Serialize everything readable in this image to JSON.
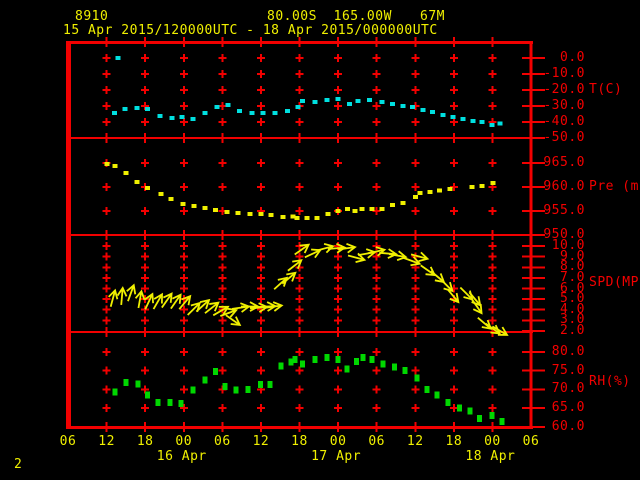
{
  "header": {
    "station_id": "8910",
    "coordinates": "80.00S  165.00W",
    "elevation": "67M",
    "time_range": "15 Apr 2015/120000UTC - 18 Apr 2015/000000UTC"
  },
  "footer": {
    "page_indicator": "2"
  },
  "colors": {
    "background": "#000000",
    "grid_red": "#f20000",
    "label_red": "#f40000",
    "yellow": "#f0f000",
    "temp_cyan": "#00e0e0",
    "rh_green": "#00d800"
  },
  "x_axis": {
    "hours_span": 72,
    "hour_labels": [
      "06",
      "12",
      "18",
      "00",
      "06",
      "12",
      "18",
      "00",
      "06",
      "12",
      "18",
      "00",
      "06"
    ],
    "date_labels": [
      {
        "text": "16 Apr",
        "tick_index": 3
      },
      {
        "text": "17 Apr",
        "tick_index": 7
      },
      {
        "text": "18 Apr",
        "tick_index": 11
      }
    ]
  },
  "chart_data": {
    "type": "scatter",
    "title": "Meteogram station 8910, 80.00S 165.00W, 67M, 15 Apr 2015 12UTC - 18 Apr 2015 00UTC",
    "x_unit": "hours since 15 Apr 2015 06UTC",
    "panels": [
      {
        "name": "temperature",
        "unit_label": "T(C)",
        "marker_color": "#00e0e0",
        "marker_w": 5,
        "marker_h": 4,
        "ticks": [
          0,
          -10,
          -20,
          -30,
          -40,
          -50
        ],
        "ylim": [
          -50,
          10
        ],
        "points": [
          [
            7.8,
            0.0
          ],
          [
            7.2,
            -34.5
          ],
          [
            8.9,
            -32.0
          ],
          [
            10.7,
            -31.3
          ],
          [
            12.4,
            -32.0
          ],
          [
            14.3,
            -36.3
          ],
          [
            16.2,
            -37.5
          ],
          [
            17.7,
            -37.0
          ],
          [
            19.4,
            -38.0
          ],
          [
            21.3,
            -34.5
          ],
          [
            23.2,
            -30.6
          ],
          [
            24.9,
            -29.5
          ],
          [
            26.7,
            -33.0
          ],
          [
            28.6,
            -34.5
          ],
          [
            30.3,
            -34.5
          ],
          [
            32.2,
            -34.5
          ],
          [
            34.1,
            -33.0
          ],
          [
            35.8,
            -30.6
          ],
          [
            36.5,
            -27.0
          ],
          [
            38.4,
            -27.5
          ],
          [
            40.3,
            -26.3
          ],
          [
            42.0,
            -25.6
          ],
          [
            43.8,
            -28.8
          ],
          [
            45.1,
            -26.9
          ],
          [
            46.9,
            -26.3
          ],
          [
            48.8,
            -27.5
          ],
          [
            50.5,
            -28.8
          ],
          [
            52.1,
            -30.0
          ],
          [
            53.6,
            -30.6
          ],
          [
            55.2,
            -32.5
          ],
          [
            56.7,
            -33.8
          ],
          [
            58.3,
            -35.6
          ],
          [
            59.9,
            -36.9
          ],
          [
            61.4,
            -38.1
          ],
          [
            63.0,
            -39.4
          ],
          [
            64.4,
            -40.0
          ],
          [
            65.9,
            -41.9
          ],
          [
            67.2,
            -40.9
          ]
        ]
      },
      {
        "name": "pressure",
        "unit_label": "Pre (mb)",
        "marker_color": "#f0f000",
        "marker_w": 5,
        "marker_h": 4,
        "ticks": [
          965,
          960,
          955,
          950
        ],
        "ylim": [
          950,
          970.2
        ],
        "points": [
          [
            6.1,
            964.8
          ],
          [
            7.3,
            964.4
          ],
          [
            9.0,
            962.9
          ],
          [
            10.7,
            961.0
          ],
          [
            12.4,
            959.8
          ],
          [
            14.5,
            958.5
          ],
          [
            16.0,
            957.5
          ],
          [
            17.9,
            956.5
          ],
          [
            19.6,
            956.0
          ],
          [
            21.3,
            955.6
          ],
          [
            22.9,
            955.2
          ],
          [
            24.7,
            954.8
          ],
          [
            26.4,
            954.6
          ],
          [
            28.3,
            954.4
          ],
          [
            30.0,
            954.4
          ],
          [
            31.6,
            954.2
          ],
          [
            33.4,
            953.8
          ],
          [
            35.0,
            953.9
          ],
          [
            35.6,
            953.5
          ],
          [
            37.2,
            953.5
          ],
          [
            38.7,
            953.5
          ],
          [
            40.4,
            954.4
          ],
          [
            42.0,
            955.0
          ],
          [
            43.5,
            955.4
          ],
          [
            44.6,
            955.0
          ],
          [
            45.7,
            955.4
          ],
          [
            47.3,
            955.4
          ],
          [
            48.8,
            955.4
          ],
          [
            50.5,
            956.2
          ],
          [
            52.1,
            956.7
          ],
          [
            54.0,
            957.9
          ],
          [
            54.7,
            958.7
          ],
          [
            56.3,
            959.0
          ],
          [
            57.8,
            959.3
          ],
          [
            59.4,
            959.6
          ],
          [
            62.8,
            960.0
          ],
          [
            64.4,
            960.2
          ],
          [
            66.1,
            960.8
          ]
        ]
      },
      {
        "name": "wind_speed",
        "unit_label": "SPD(MPS)",
        "marker_color": "#f0f000",
        "style": "arrows",
        "ticks": [
          10,
          9,
          8,
          7,
          6,
          5,
          4,
          3,
          2
        ],
        "ylim": [
          1.9,
          11.05
        ],
        "points_speed_angle": [
          [
            7.0,
            5.1,
            -75
          ],
          [
            8.4,
            5.3,
            -85
          ],
          [
            9.8,
            5.6,
            -70
          ],
          [
            11.2,
            5.0,
            -80
          ],
          [
            12.6,
            4.8,
            -65
          ],
          [
            14.0,
            4.8,
            -60
          ],
          [
            15.4,
            4.9,
            -55
          ],
          [
            16.8,
            4.8,
            -55
          ],
          [
            18.2,
            4.7,
            -50
          ],
          [
            19.6,
            4.1,
            -45
          ],
          [
            21.0,
            4.4,
            -42
          ],
          [
            22.4,
            4.2,
            -38
          ],
          [
            23.8,
            3.9,
            -30
          ],
          [
            25.0,
            3.7,
            -20
          ],
          [
            25.7,
            3.0,
            35
          ],
          [
            26.9,
            4.2,
            -8
          ],
          [
            28.3,
            4.3,
            0
          ],
          [
            29.7,
            4.2,
            -5
          ],
          [
            31.0,
            4.3,
            -3
          ],
          [
            32.0,
            4.3,
            -8
          ],
          [
            33.1,
            6.5,
            -42
          ],
          [
            34.4,
            7.0,
            -40
          ],
          [
            35.3,
            8.2,
            -38
          ],
          [
            36.4,
            9.7,
            -35
          ],
          [
            38.1,
            9.3,
            -25
          ],
          [
            40.0,
            9.8,
            -15
          ],
          [
            41.8,
            9.8,
            -5
          ],
          [
            43.4,
            9.8,
            -8
          ],
          [
            44.9,
            8.9,
            15
          ],
          [
            46.5,
            9.3,
            -10
          ],
          [
            48.0,
            9.5,
            -12
          ],
          [
            49.8,
            9.3,
            5
          ],
          [
            51.3,
            9.1,
            10
          ],
          [
            53.5,
            8.6,
            20
          ],
          [
            54.7,
            9.0,
            15
          ],
          [
            56.0,
            7.7,
            35
          ],
          [
            57.5,
            7.1,
            40
          ],
          [
            58.9,
            6.3,
            45
          ],
          [
            59.9,
            5.3,
            50
          ],
          [
            62.0,
            5.5,
            45
          ],
          [
            63.3,
            5.0,
            50
          ],
          [
            63.6,
            4.3,
            55
          ],
          [
            64.8,
            2.7,
            40
          ],
          [
            66.1,
            2.2,
            35
          ],
          [
            67.2,
            2.0,
            30
          ]
        ]
      },
      {
        "name": "relative_humidity",
        "unit_label": "RH(%)",
        "marker_color": "#00d800",
        "marker_w": 5,
        "marker_h": 7,
        "ticks": [
          80,
          75,
          70,
          65,
          60
        ],
        "ylim": [
          60,
          85.3
        ],
        "points": [
          [
            7.3,
            69.3
          ],
          [
            9.0,
            71.8
          ],
          [
            10.9,
            71.5
          ],
          [
            12.4,
            68.5
          ],
          [
            14.0,
            66.5
          ],
          [
            15.9,
            66.5
          ],
          [
            17.6,
            66.3
          ],
          [
            19.4,
            69.8
          ],
          [
            21.3,
            72.5
          ],
          [
            22.9,
            74.8
          ],
          [
            24.4,
            70.8
          ],
          [
            26.1,
            69.8
          ],
          [
            28.0,
            70.0
          ],
          [
            29.9,
            71.3
          ],
          [
            31.4,
            71.3
          ],
          [
            33.1,
            76.3
          ],
          [
            34.7,
            77.3
          ],
          [
            35.3,
            78.0
          ],
          [
            36.5,
            76.8
          ],
          [
            38.4,
            78.0
          ],
          [
            40.3,
            78.5
          ],
          [
            42.0,
            78.0
          ],
          [
            43.4,
            75.5
          ],
          [
            44.9,
            77.5
          ],
          [
            45.9,
            78.5
          ],
          [
            47.3,
            78.0
          ],
          [
            49.0,
            76.8
          ],
          [
            50.8,
            76.0
          ],
          [
            52.4,
            75.0
          ],
          [
            54.3,
            73.0
          ],
          [
            55.8,
            70.0
          ],
          [
            57.4,
            68.5
          ],
          [
            59.1,
            66.5
          ],
          [
            60.9,
            65.0
          ],
          [
            62.5,
            64.3
          ],
          [
            64.0,
            62.3
          ],
          [
            65.9,
            63.0
          ],
          [
            67.5,
            61.5
          ]
        ]
      }
    ]
  }
}
